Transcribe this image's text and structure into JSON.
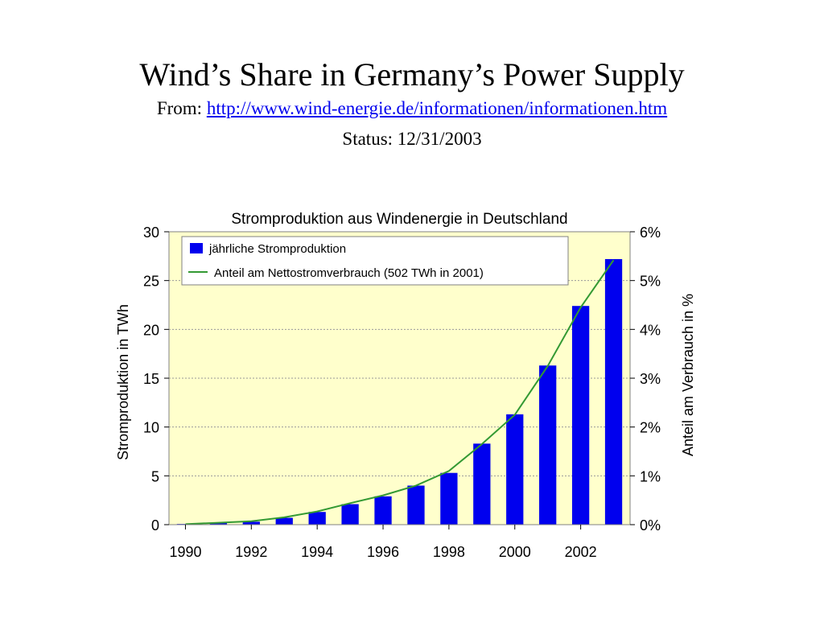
{
  "slide": {
    "title": "Wind’s Share in Germany’s Power Supply",
    "from_label": "From:",
    "source_url": "http://www.wind-energie.de/informationen/informationen.htm",
    "status": "Status: 12/31/2003"
  },
  "colors": {
    "plot_background": "#ffffcc",
    "bar": "#0000ee",
    "line": "#339933",
    "grid": "#999999",
    "link": "#0000ee"
  },
  "chart_data": {
    "type": "bar",
    "title": "Stromproduktion aus Windenergie in Deutschland",
    "ylabel": "Stromproduktion in TWh",
    "y2label": "Anteil am Verbrauch in %",
    "ylim": [
      0,
      30
    ],
    "y2lim": [
      0,
      6
    ],
    "yticks": [
      "0",
      "5",
      "10",
      "15",
      "20",
      "25",
      "30"
    ],
    "y2ticks": [
      "0%",
      "1%",
      "2%",
      "3%",
      "4%",
      "5%",
      "6%"
    ],
    "xtick_labels": [
      "1990",
      "1992",
      "1994",
      "1996",
      "1998",
      "2000",
      "2002"
    ],
    "grid": true,
    "legend_position": "top-left",
    "categories": [
      "1990",
      "1991",
      "1992",
      "1993",
      "1994",
      "1995",
      "1996",
      "1997",
      "1998",
      "1999",
      "2000",
      "2001",
      "2002",
      "2003"
    ],
    "series": [
      {
        "name": "jährliche Stromproduktion",
        "kind": "bar",
        "axis": "left",
        "values": [
          0.07,
          0.2,
          0.3,
          0.7,
          1.3,
          2.1,
          2.9,
          4.0,
          5.3,
          8.3,
          11.3,
          16.3,
          22.4,
          27.2
        ]
      },
      {
        "name": "Anteil am Nettostromverbrauch (502 TWh in 2001)",
        "kind": "line",
        "axis": "right",
        "values": [
          0.01,
          0.04,
          0.07,
          0.15,
          0.27,
          0.44,
          0.6,
          0.8,
          1.1,
          1.65,
          2.25,
          3.25,
          4.45,
          5.42
        ]
      }
    ]
  }
}
